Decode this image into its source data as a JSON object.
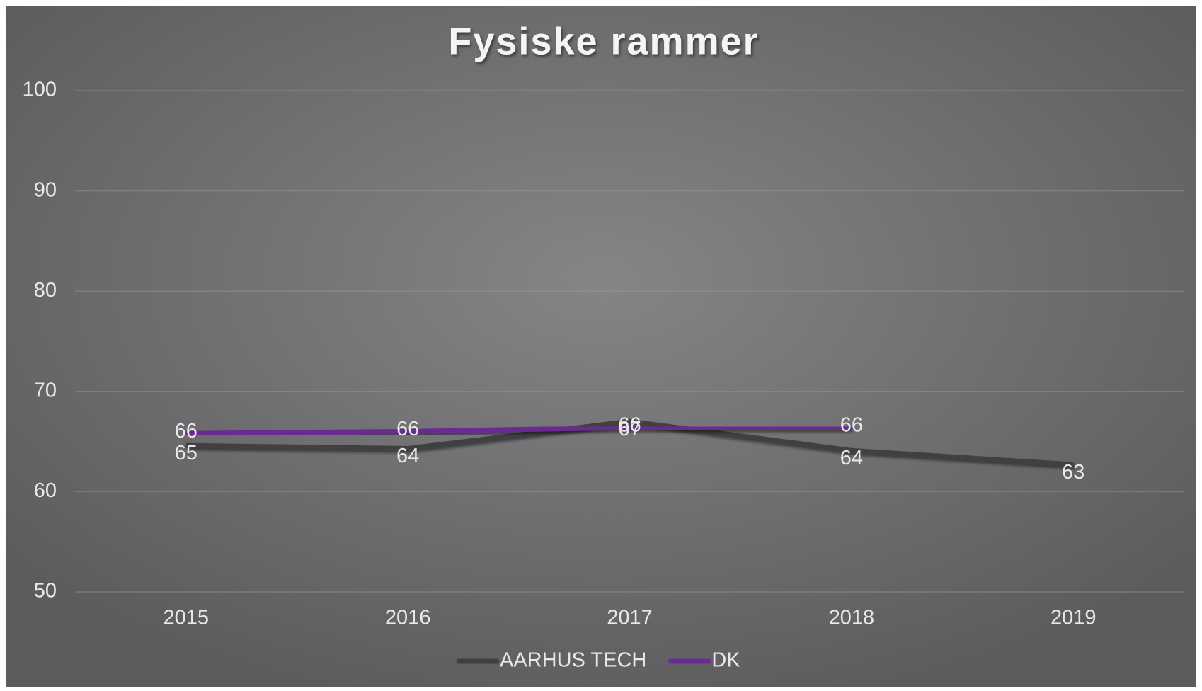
{
  "chart_data": {
    "type": "line",
    "title": "Fysiske rammer",
    "categories": [
      "2015",
      "2016",
      "2017",
      "2018",
      "2019"
    ],
    "series": [
      {
        "name": "AARHUS TECH",
        "color": "#404040",
        "values": [
          64.6,
          64.3,
          67.0,
          64.1,
          62.7
        ],
        "value_labels": [
          "65",
          "64",
          "67",
          "64",
          "63"
        ]
      },
      {
        "name": "DK",
        "color": "#6a2c91",
        "values": [
          65.8,
          66.0,
          66.4,
          66.4,
          null
        ],
        "value_labels": [
          "66",
          "66",
          "66",
          "66",
          null
        ]
      }
    ],
    "ylim": [
      50,
      100
    ],
    "yticks": [
      50,
      60,
      70,
      80,
      90,
      100
    ],
    "grid": true,
    "legend": "bottom"
  }
}
